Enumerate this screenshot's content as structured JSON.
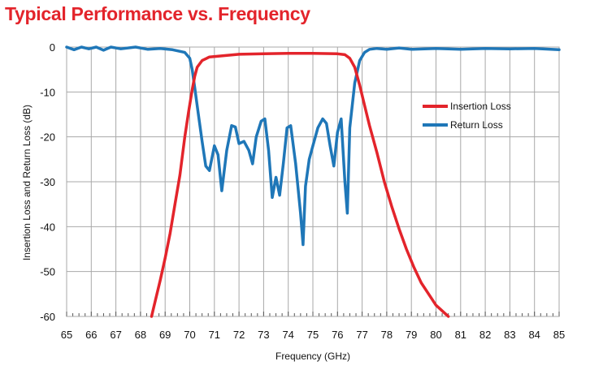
{
  "chart_data": {
    "type": "line",
    "title": "Typical Performance vs. Frequency",
    "title_color": "#e3242b",
    "xlabel": "Frequency (GHz)",
    "ylabel": "Insertion Loss and Return Loss (dB)",
    "xlim": [
      65,
      85
    ],
    "ylim": [
      -60,
      0
    ],
    "x_ticks": [
      "65",
      "66",
      "67",
      "68",
      "69",
      "70",
      "71",
      "72",
      "73",
      "74",
      "75",
      "76",
      "77",
      "78",
      "79",
      "80",
      "81",
      "82",
      "83",
      "84",
      "85"
    ],
    "y_ticks": [
      "0",
      "-10",
      "-20",
      "-30",
      "-40",
      "-50",
      "-60"
    ],
    "grid": true,
    "legend_position": "right-center",
    "series": [
      {
        "name": "Insertion Loss",
        "color": "#e3242b",
        "x": [
          68.45,
          68.6,
          68.8,
          69.0,
          69.2,
          69.4,
          69.6,
          69.8,
          69.95,
          70.1,
          70.2,
          70.3,
          70.5,
          70.8,
          71.2,
          72.0,
          73.0,
          74.0,
          75.0,
          76.0,
          76.3,
          76.5,
          76.7,
          76.9,
          77.1,
          77.3,
          77.6,
          77.9,
          78.2,
          78.5,
          78.8,
          79.1,
          79.4,
          79.7,
          80.0,
          80.2,
          80.4,
          80.5
        ],
        "y": [
          -60.0,
          -56.5,
          -52.0,
          -47.0,
          -41.5,
          -35.0,
          -28.5,
          -20.0,
          -14.5,
          -9.5,
          -6.5,
          -4.5,
          -3.0,
          -2.2,
          -2.0,
          -1.6,
          -1.5,
          -1.4,
          -1.4,
          -1.5,
          -1.7,
          -2.5,
          -4.5,
          -8.5,
          -13.0,
          -17.5,
          -23.5,
          -30.0,
          -35.5,
          -40.5,
          -45.0,
          -49.0,
          -52.5,
          -55.0,
          -57.5,
          -58.5,
          -59.5,
          -60.0
        ]
      },
      {
        "name": "Return Loss",
        "color": "#1f77b8",
        "x": [
          65.0,
          65.3,
          65.6,
          65.9,
          66.2,
          66.5,
          66.8,
          67.2,
          67.8,
          68.3,
          68.8,
          69.3,
          69.8,
          70.0,
          70.1,
          70.2,
          70.35,
          70.5,
          70.65,
          70.8,
          71.0,
          71.15,
          71.3,
          71.5,
          71.7,
          71.85,
          72.0,
          72.2,
          72.4,
          72.55,
          72.7,
          72.9,
          73.05,
          73.2,
          73.35,
          73.5,
          73.65,
          73.8,
          73.95,
          74.1,
          74.3,
          74.5,
          74.6,
          74.7,
          74.85,
          75.0,
          75.2,
          75.4,
          75.55,
          75.7,
          75.85,
          76.0,
          76.15,
          76.3,
          76.4,
          76.5,
          76.7,
          76.9,
          77.1,
          77.3,
          77.6,
          78.0,
          78.5,
          79.0,
          80.0,
          81.0,
          82.0,
          83.0,
          84.0,
          85.0
        ],
        "y": [
          0.0,
          -0.6,
          0.0,
          -0.4,
          0.0,
          -0.7,
          0.0,
          -0.4,
          0.0,
          -0.5,
          -0.3,
          -0.6,
          -1.2,
          -2.5,
          -5.0,
          -9.0,
          -15.0,
          -21.0,
          -26.5,
          -27.5,
          -22.0,
          -24.0,
          -32.0,
          -23.0,
          -17.5,
          -17.8,
          -21.5,
          -21.0,
          -23.0,
          -26.0,
          -20.0,
          -16.5,
          -16.0,
          -23.0,
          -33.5,
          -29.0,
          -33.0,
          -26.0,
          -18.0,
          -17.5,
          -26.0,
          -37.0,
          -44.0,
          -31.0,
          -25.0,
          -22.0,
          -18.0,
          -16.0,
          -17.0,
          -22.0,
          -26.5,
          -19.0,
          -16.0,
          -30.0,
          -37.0,
          -18.0,
          -8.0,
          -3.0,
          -1.2,
          -0.5,
          -0.3,
          -0.5,
          -0.2,
          -0.5,
          -0.3,
          -0.5,
          -0.3,
          -0.4,
          -0.3,
          -0.6
        ]
      }
    ]
  }
}
